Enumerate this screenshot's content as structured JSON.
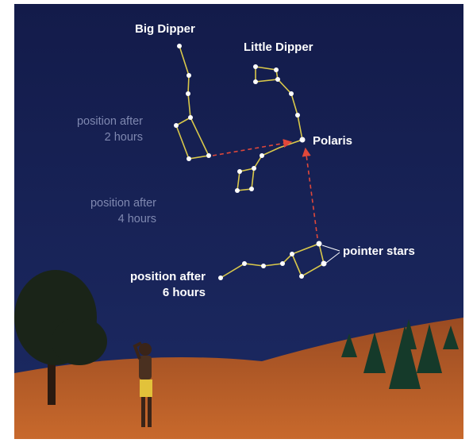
{
  "labels": {
    "big_dipper": "Big Dipper",
    "little_dipper": "Little Dipper",
    "polaris": "Polaris",
    "pointer_stars": "pointer stars",
    "position_2h": [
      "position after",
      "2 hours"
    ],
    "position_4h": [
      "position after",
      "4 hours"
    ],
    "position_6h": [
      "position after",
      "6 hours"
    ]
  }
}
